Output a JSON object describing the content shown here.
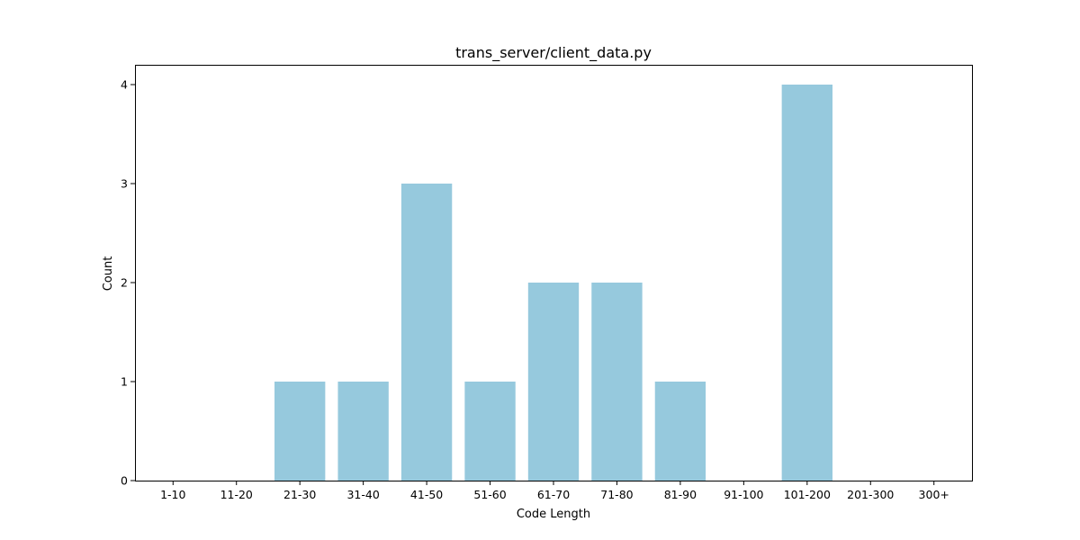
{
  "chart_data": {
    "type": "bar",
    "title": "trans_server/client_data.py",
    "xlabel": "Code Length",
    "ylabel": "Count",
    "categories": [
      "1-10",
      "11-20",
      "21-30",
      "31-40",
      "41-50",
      "51-60",
      "61-70",
      "71-80",
      "81-90",
      "91-100",
      "101-200",
      "201-300",
      "300+"
    ],
    "values": [
      0,
      0,
      1,
      1,
      3,
      1,
      2,
      2,
      1,
      0,
      4,
      0,
      0
    ],
    "ylim": [
      0,
      4.2
    ],
    "yticks": [
      0,
      1,
      2,
      3,
      4
    ],
    "bar_color": "#96c9dd",
    "grid": false,
    "legend": "none"
  }
}
